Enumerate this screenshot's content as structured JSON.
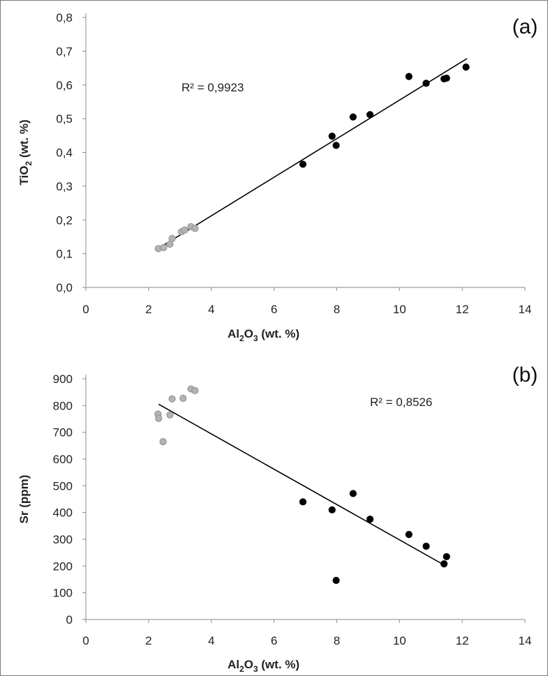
{
  "chart_data": [
    {
      "type": "scatter",
      "panel_label": "(a)",
      "xlabel": {
        "base1": "Al",
        "sub1": "2",
        "base2": "O",
        "sub2": "3",
        "rest": " (wt. %)"
      },
      "ylabel": {
        "base": "TiO",
        "sub": "2",
        "rest": " (wt. %)"
      },
      "xlim": [
        0,
        14
      ],
      "ylim": [
        0,
        0.8
      ],
      "x_ticks": [
        0,
        2,
        4,
        6,
        8,
        10,
        12,
        14
      ],
      "x_tick_labels": [
        "0",
        "2",
        "4",
        "6",
        "8",
        "10",
        "12",
        "14"
      ],
      "y_ticks": [
        0,
        0.1,
        0.2,
        0.3,
        0.4,
        0.5,
        0.6,
        0.7,
        0.8
      ],
      "y_tick_labels": [
        "0,0",
        "0,1",
        "0,2",
        "0,3",
        "0,4",
        "0,5",
        "0,6",
        "0,7",
        "0,8"
      ],
      "r2_text": "R² = 0,9923",
      "trendline": {
        "x": [
          2.3,
          12.15
        ],
        "y": [
          0.115,
          0.678
        ]
      },
      "series": [
        {
          "color": "#b4b4b4",
          "points": [
            [
              2.31,
              0.115
            ],
            [
              2.48,
              0.118
            ],
            [
              2.68,
              0.128
            ],
            [
              2.75,
              0.145
            ],
            [
              3.05,
              0.165
            ],
            [
              3.15,
              0.17
            ],
            [
              3.35,
              0.18
            ],
            [
              3.48,
              0.175
            ]
          ]
        },
        {
          "color": "#000000",
          "points": [
            [
              6.92,
              0.365
            ],
            [
              7.85,
              0.448
            ],
            [
              7.98,
              0.421
            ],
            [
              8.52,
              0.505
            ],
            [
              9.06,
              0.512
            ],
            [
              10.3,
              0.625
            ],
            [
              10.85,
              0.605
            ],
            [
              11.42,
              0.618
            ],
            [
              11.5,
              0.62
            ],
            [
              12.12,
              0.653
            ]
          ]
        }
      ]
    },
    {
      "type": "scatter",
      "panel_label": "(b)",
      "xlabel": {
        "base1": "Al",
        "sub1": "2",
        "base2": "O",
        "sub2": "3",
        "rest": " (wt. %)"
      },
      "ylabel": {
        "base": "Sr (ppm)",
        "sub": "",
        "rest": ""
      },
      "xlim": [
        0,
        14
      ],
      "ylim": [
        0,
        900
      ],
      "x_ticks": [
        0,
        2,
        4,
        6,
        8,
        10,
        12,
        14
      ],
      "x_tick_labels": [
        "0",
        "2",
        "4",
        "6",
        "8",
        "10",
        "12",
        "14"
      ],
      "y_ticks": [
        0,
        100,
        200,
        300,
        400,
        500,
        600,
        700,
        800,
        900
      ],
      "y_tick_labels": [
        "0",
        "100",
        "200",
        "300",
        "400",
        "500",
        "600",
        "700",
        "800",
        "900"
      ],
      "r2_text": "R² = 0,8526",
      "trendline": {
        "x": [
          2.32,
          11.48
        ],
        "y": [
          805,
          200
        ]
      },
      "series": [
        {
          "color": "#b4b4b4",
          "points": [
            [
              2.3,
              768
            ],
            [
              2.32,
              752
            ],
            [
              2.46,
              665
            ],
            [
              2.68,
              765
            ],
            [
              2.75,
              825
            ],
            [
              3.1,
              827
            ],
            [
              3.35,
              862
            ],
            [
              3.48,
              856
            ]
          ]
        },
        {
          "color": "#000000",
          "points": [
            [
              6.92,
              440
            ],
            [
              7.85,
              410
            ],
            [
              7.98,
              146
            ],
            [
              8.52,
              471
            ],
            [
              9.06,
              375
            ],
            [
              10.3,
              318
            ],
            [
              10.85,
              274
            ],
            [
              11.42,
              208
            ],
            [
              11.5,
              235
            ]
          ]
        }
      ]
    }
  ]
}
